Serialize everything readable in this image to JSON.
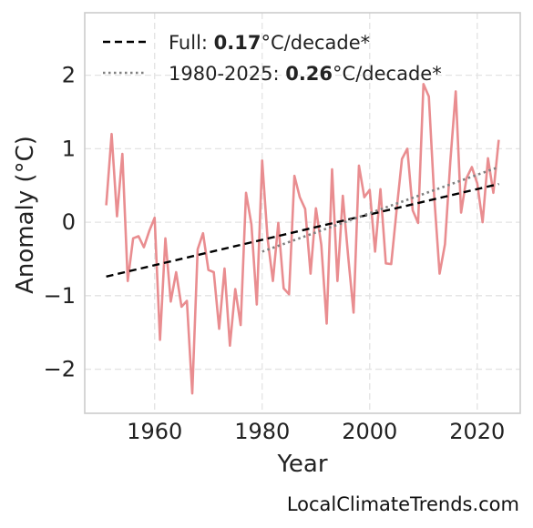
{
  "chart_data": {
    "type": "line",
    "xlabel": "Year",
    "ylabel": "Anomaly (°C)",
    "xlim": [
      1947,
      2028
    ],
    "ylim": [
      -2.6,
      2.85
    ],
    "xticks": [
      1960,
      1980,
      2000,
      2020
    ],
    "yticks": [
      -2,
      -1,
      0,
      1,
      2
    ],
    "ytick_labels": [
      "−2",
      "−1",
      "0",
      "1",
      "2"
    ],
    "grid": true,
    "legend_position": "top-left",
    "series": [
      {
        "style": "solid",
        "color": "#e8878a",
        "x": [
          1951,
          1952,
          1953,
          1954,
          1955,
          1956,
          1957,
          1958,
          1959,
          1960,
          1961,
          1962,
          1963,
          1964,
          1965,
          1966,
          1967,
          1968,
          1969,
          1970,
          1971,
          1972,
          1973,
          1974,
          1975,
          1976,
          1977,
          1978,
          1979,
          1980,
          1981,
          1982,
          1983,
          1984,
          1985,
          1986,
          1987,
          1988,
          1989,
          1990,
          1991,
          1992,
          1993,
          1994,
          1995,
          1996,
          1997,
          1998,
          1999,
          2000,
          2001,
          2002,
          2003,
          2004,
          2005,
          2006,
          2007,
          2008,
          2009,
          2010,
          2011,
          2012,
          2013,
          2014,
          2015,
          2016,
          2017,
          2018,
          2019,
          2020,
          2021,
          2022,
          2023,
          2024
        ],
        "y": [
          0.23,
          1.2,
          0.08,
          0.93,
          -0.8,
          -0.22,
          -0.19,
          -0.34,
          -0.12,
          0.06,
          -1.6,
          -0.22,
          -1.08,
          -0.68,
          -1.15,
          -1.07,
          -2.33,
          -0.37,
          -0.15,
          -0.65,
          -0.68,
          -1.45,
          -0.63,
          -1.68,
          -0.91,
          -1.4,
          0.4,
          -0.03,
          -1.12,
          0.84,
          -0.22,
          -0.8,
          -0.01,
          -0.9,
          -0.98,
          0.63,
          0.34,
          0.18,
          -0.7,
          0.19,
          -0.31,
          -1.38,
          0.72,
          -0.8,
          0.36,
          -0.47,
          -1.23,
          0.77,
          0.34,
          0.44,
          -0.4,
          0.45,
          -0.56,
          -0.57,
          0.16,
          0.86,
          1.0,
          0.16,
          -0.01,
          1.88,
          1.71,
          0.35,
          -0.7,
          -0.3,
          0.83,
          1.78,
          0.13,
          0.6,
          0.75,
          0.53,
          0.0,
          0.87,
          0.4,
          1.12
        ]
      },
      {
        "name": "Full: 0.17°C/decade*",
        "style": "dashed",
        "color": "#000000",
        "x": [
          1951,
          2024
        ],
        "y": [
          -0.74,
          0.52
        ]
      },
      {
        "name": "1980-2025: 0.26°C/decade*",
        "style": "dotted",
        "color": "#808080",
        "x": [
          1980,
          2024
        ],
        "y": [
          -0.4,
          0.75
        ]
      }
    ],
    "legend": [
      {
        "prefix": "Full: ",
        "bold": "0.17",
        "suffix": "°C/decade*",
        "style": "dashed",
        "color": "#000000"
      },
      {
        "prefix": "1980-2025: ",
        "bold": "0.26",
        "suffix": "°C/decade*",
        "style": "dotted",
        "color": "#808080"
      }
    ]
  },
  "credit": "LocalClimateTrends.com"
}
